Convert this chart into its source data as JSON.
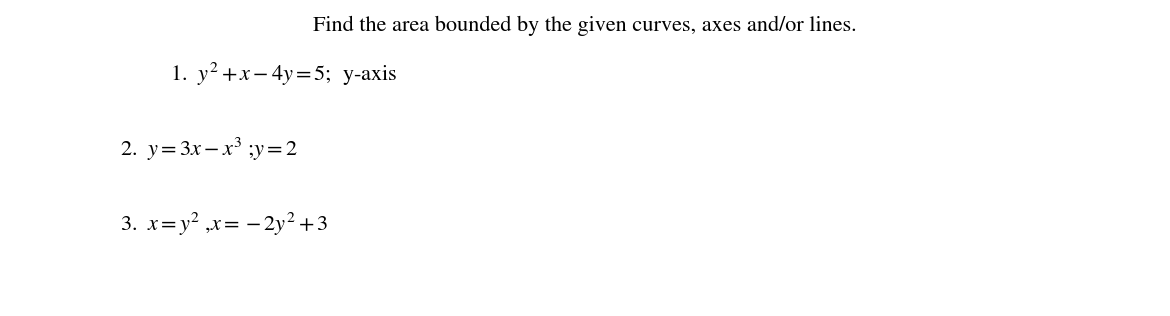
{
  "title": "Find the area bounded by the given curves, axes and/or lines.",
  "line1": "1.  $y^2 + x - 4y = 5$;  y-axis",
  "line2": "2.  $y = 3x - x^3$ ;$y = 2$",
  "line3": "3.  $x = y^2$ ,$x = -2y^2 + 3$",
  "title_fontsize": 16,
  "body_fontsize": 16,
  "bg_color": "#ffffff",
  "text_color": "#000000",
  "fig_width": 11.7,
  "fig_height": 3.16,
  "dpi": 100
}
